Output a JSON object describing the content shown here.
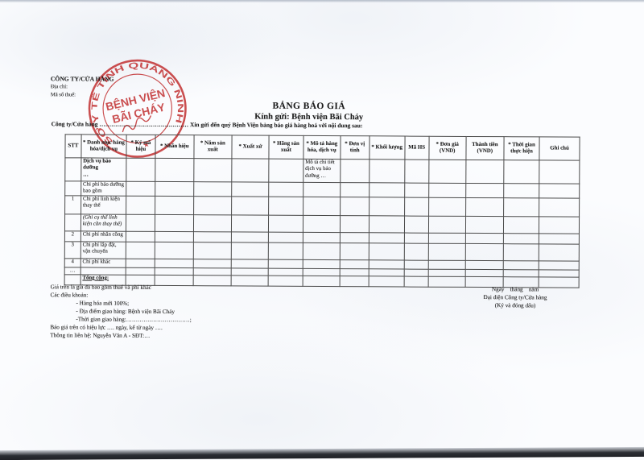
{
  "header": {
    "company": "CÔNG TY/CỬA HÀNG",
    "address_label": "Địa chỉ:",
    "tax_label": "Mã số thuế:",
    "title": "BẢNG BÁO GIÁ",
    "subtitle": "Kính gửi: Bệnh viện Bãi Cháy",
    "intro": "Công ty/Cửa hàng ……………………………………… Xin gửi đến quý Bệnh Viện bảng báo giá hàng hoá với nội dung sau:"
  },
  "stamp": {
    "ring_text": "SỞ Y TẾ TỈNH QUẢNG NINH",
    "center_line1": "BỆNH VIỆN",
    "center_line2": "BÃI CHÁY",
    "star": "★",
    "color": "#c43a3c"
  },
  "table": {
    "headers": [
      "STT",
      "* Danh mục hàng hóa/dịch vụ",
      "* Ký mã hiệu",
      "* Nhãn hiệu",
      "* Năm sản xuất",
      "* Xuất xứ",
      "* Hãng sản xuất",
      "* Mô tả hàng hóa, dịch vụ",
      "* Đơn vị tính",
      "* Khối lượng",
      "Mã HS",
      "* Đơn giá (VND)",
      "Thành tiền (VND)",
      "* Thời gian thực hiện",
      "Ghi chú"
    ],
    "rows": [
      {
        "stt": "",
        "label": "Dịch vụ bảo dưỡng\n…",
        "style": "bold",
        "desc": "Mô tả chi tiết dịch vụ bảo dưỡng …"
      },
      {
        "stt": "",
        "label": "Chi phí bảo dưỡng bao gồm",
        "style": "normal",
        "desc": ""
      },
      {
        "stt": "1",
        "label": "Chi phí linh kiện thay thế",
        "style": "normal",
        "desc": ""
      },
      {
        "stt": "",
        "label": "(Ghi cụ thể linh kiện cần thay thế)",
        "style": "italic",
        "desc": ""
      },
      {
        "stt": "2",
        "label": "Chi phí nhân công",
        "style": "normal",
        "desc": ""
      },
      {
        "stt": "3",
        "label": "Chi phí lắp đặt, vận chuyển",
        "style": "normal",
        "desc": ""
      },
      {
        "stt": "4",
        "label": "Chi phí khác",
        "style": "normal",
        "desc": ""
      },
      {
        "stt": "…",
        "label": "",
        "style": "normal",
        "desc": ""
      },
      {
        "stt": "",
        "label": "Tổng cộng:",
        "style": "bold-underline",
        "desc": ""
      }
    ]
  },
  "notes": {
    "price_note": "Giá trên là giá đã bao gồm thuế và phí khác",
    "terms_title": "Các điều khoản:",
    "terms": [
      "- Hàng hóa mới 100%;",
      "- Địa điểm giao hàng: Bệnh viện Bãi Cháy",
      "-Thời gian giao hàng:……………………………;"
    ],
    "validity": "Báo giá trên có hiệu lực …. ngày, kể từ ngày ….",
    "contact": "Thông tin liên hệ: Nguyễn Văn A - SĐT:…"
  },
  "signature": {
    "date_line": "Ngày    tháng    năm",
    "representative": "Đại diện Công ty/Cửa hàng",
    "sign_note": "(Ký và đóng dấu)"
  }
}
